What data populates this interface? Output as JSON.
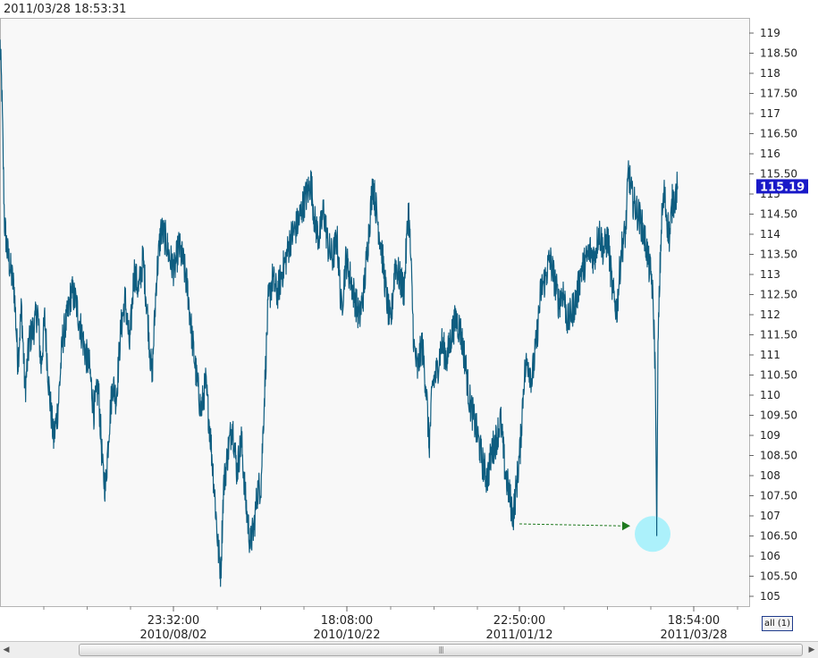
{
  "timestamp": "2011/03/28 18:53:31",
  "current_price_label": "115.19",
  "all_button_label": "all (1)",
  "colors": {
    "series": "#0e5d80",
    "plot_background": "#f8f8f8",
    "price_tag": "#1919c8",
    "annotation_arrow": "#1f7a1f",
    "annotation_circle": "#9ff0fb"
  },
  "icons": {
    "scroll_left": "arrow-left-icon",
    "scroll_right": "arrow-right-icon",
    "scroll_grip": "grip-icon"
  },
  "scroll_grip_glyph": "|||",
  "chart_data": {
    "type": "line",
    "title": "",
    "xlabel": "",
    "ylabel": "",
    "ylim": [
      104.8,
      119.4
    ],
    "grid": false,
    "y_ticks": [
      "105",
      "105.50",
      "106",
      "106.50",
      "107",
      "107.50",
      "108",
      "108.50",
      "109",
      "109.50",
      "110",
      "110.50",
      "111",
      "111.50",
      "112",
      "112.50",
      "113",
      "113.50",
      "114",
      "114.50",
      "115",
      "115.50",
      "116",
      "116.50",
      "117",
      "117.50",
      "118",
      "118.50",
      "119"
    ],
    "x_ticks": [
      {
        "time": "23:32:00",
        "date": "2010/08/02"
      },
      {
        "time": "18:08:00",
        "date": "2010/10/22"
      },
      {
        "time": "22:50:00",
        "date": "2011/01/12"
      },
      {
        "time": "18:54:00",
        "date": "2011/03/28"
      }
    ],
    "series": [
      {
        "anchors": [
          [
            0,
            118.7
          ],
          [
            2,
            117.6
          ],
          [
            5,
            114.3
          ],
          [
            8,
            113.6
          ],
          [
            12,
            113.1
          ],
          [
            16,
            112.6
          ],
          [
            20,
            110.8
          ],
          [
            24,
            112.2
          ],
          [
            28,
            110.1
          ],
          [
            33,
            111.4
          ],
          [
            38,
            111.7
          ],
          [
            42,
            112.1
          ],
          [
            46,
            110.7
          ],
          [
            50,
            111.9
          ],
          [
            55,
            110.1
          ],
          [
            60,
            108.9
          ],
          [
            65,
            109.7
          ],
          [
            70,
            111.4
          ],
          [
            75,
            111.9
          ],
          [
            80,
            112.6
          ],
          [
            85,
            112.3
          ],
          [
            90,
            111.7
          ],
          [
            95,
            111.1
          ],
          [
            100,
            110.7
          ],
          [
            105,
            109.6
          ],
          [
            110,
            110.2
          ],
          [
            115,
            108.1
          ],
          [
            118,
            107.7
          ],
          [
            122,
            109.2
          ],
          [
            126,
            110.3
          ],
          [
            130,
            109.9
          ],
          [
            135,
            111.6
          ],
          [
            140,
            112.4
          ],
          [
            145,
            111.2
          ],
          [
            150,
            113.1
          ],
          [
            155,
            112.6
          ],
          [
            160,
            113.4
          ],
          [
            165,
            112.0
          ],
          [
            170,
            110.4
          ],
          [
            175,
            112.9
          ],
          [
            180,
            114.1
          ],
          [
            185,
            113.9
          ],
          [
            190,
            113.4
          ],
          [
            195,
            113.1
          ],
          [
            200,
            113.7
          ],
          [
            205,
            113.3
          ],
          [
            210,
            112.6
          ],
          [
            215,
            111.4
          ],
          [
            220,
            110.4
          ],
          [
            225,
            109.6
          ],
          [
            230,
            110.3
          ],
          [
            235,
            109.1
          ],
          [
            240,
            107.6
          ],
          [
            244,
            106.2
          ],
          [
            247,
            105.6
          ],
          [
            250,
            107.7
          ],
          [
            255,
            108.6
          ],
          [
            260,
            109.3
          ],
          [
            265,
            108.1
          ],
          [
            270,
            108.9
          ],
          [
            275,
            107.3
          ],
          [
            280,
            106.3
          ],
          [
            284,
            106.7
          ],
          [
            288,
            107.6
          ],
          [
            292,
            107.8
          ],
          [
            296,
            110.1
          ],
          [
            300,
            112.3
          ],
          [
            305,
            112.9
          ],
          [
            310,
            112.5
          ],
          [
            315,
            113.0
          ],
          [
            320,
            113.4
          ],
          [
            325,
            113.9
          ],
          [
            330,
            114.1
          ],
          [
            335,
            114.4
          ],
          [
            340,
            114.8
          ],
          [
            345,
            115.1
          ],
          [
            348,
            115.3
          ],
          [
            352,
            114.3
          ],
          [
            357,
            113.9
          ],
          [
            362,
            114.6
          ],
          [
            367,
            113.7
          ],
          [
            372,
            113.4
          ],
          [
            377,
            113.9
          ],
          [
            382,
            112.1
          ],
          [
            387,
            113.4
          ],
          [
            392,
            112.9
          ],
          [
            397,
            112.4
          ],
          [
            402,
            111.9
          ],
          [
            407,
            112.6
          ],
          [
            412,
            113.9
          ],
          [
            417,
            115.3
          ],
          [
            422,
            114.4
          ],
          [
            427,
            113.6
          ],
          [
            432,
            112.5
          ],
          [
            437,
            111.7
          ],
          [
            442,
            113.3
          ],
          [
            447,
            112.9
          ],
          [
            452,
            112.6
          ],
          [
            457,
            114.7
          ],
          [
            460,
            113.1
          ],
          [
            463,
            111.2
          ],
          [
            467,
            110.6
          ],
          [
            472,
            111.3
          ],
          [
            477,
            110.1
          ],
          [
            480,
            108.7
          ],
          [
            484,
            110.3
          ],
          [
            489,
            110.6
          ],
          [
            494,
            111.3
          ],
          [
            500,
            110.9
          ],
          [
            505,
            111.5
          ],
          [
            510,
            111.9
          ],
          [
            515,
            111.6
          ],
          [
            520,
            110.9
          ],
          [
            525,
            109.9
          ],
          [
            530,
            109.4
          ],
          [
            535,
            108.9
          ],
          [
            540,
            108.3
          ],
          [
            545,
            107.9
          ],
          [
            550,
            108.6
          ],
          [
            555,
            108.9
          ],
          [
            560,
            109.4
          ],
          [
            565,
            108.1
          ],
          [
            570,
            107.5
          ],
          [
            574,
            107.0
          ],
          [
            578,
            107.8
          ],
          [
            582,
            108.7
          ],
          [
            586,
            110.4
          ],
          [
            590,
            110.9
          ],
          [
            595,
            110.4
          ],
          [
            600,
            111.3
          ],
          [
            605,
            112.6
          ],
          [
            610,
            112.9
          ],
          [
            615,
            113.4
          ],
          [
            620,
            112.9
          ],
          [
            625,
            112.3
          ],
          [
            630,
            112.6
          ],
          [
            635,
            111.8
          ],
          [
            640,
            112.1
          ],
          [
            645,
            112.4
          ],
          [
            650,
            113.1
          ],
          [
            655,
            113.3
          ],
          [
            660,
            113.6
          ],
          [
            665,
            113.4
          ],
          [
            670,
            114.1
          ],
          [
            675,
            113.6
          ],
          [
            680,
            113.9
          ],
          [
            685,
            112.6
          ],
          [
            690,
            112.1
          ],
          [
            695,
            113.6
          ],
          [
            700,
            114.1
          ],
          [
            703,
            115.6
          ],
          [
            707,
            114.9
          ],
          [
            712,
            114.6
          ],
          [
            717,
            114.3
          ],
          [
            720,
            114.0
          ],
          [
            723,
            113.7
          ],
          [
            726,
            113.2
          ],
          [
            729,
            112.9
          ],
          [
            731,
            112.0
          ],
          [
            733,
            110.6
          ],
          [
            734,
            108.2
          ],
          [
            734.6,
            106.5
          ],
          [
            735,
            107.9
          ],
          [
            736,
            111.1
          ],
          [
            738,
            112.9
          ],
          [
            740,
            114.3
          ],
          [
            743,
            115.0
          ],
          [
            746,
            114.4
          ],
          [
            749,
            113.9
          ],
          [
            752,
            114.8
          ],
          [
            755,
            114.9
          ],
          [
            758,
            115.19
          ]
        ],
        "annotation": {
          "arrow_from": [
            581,
            106.8
          ],
          "arrow_to": [
            705,
            106.75
          ],
          "circle_at": [
            730,
            106.55
          ]
        }
      }
    ]
  }
}
